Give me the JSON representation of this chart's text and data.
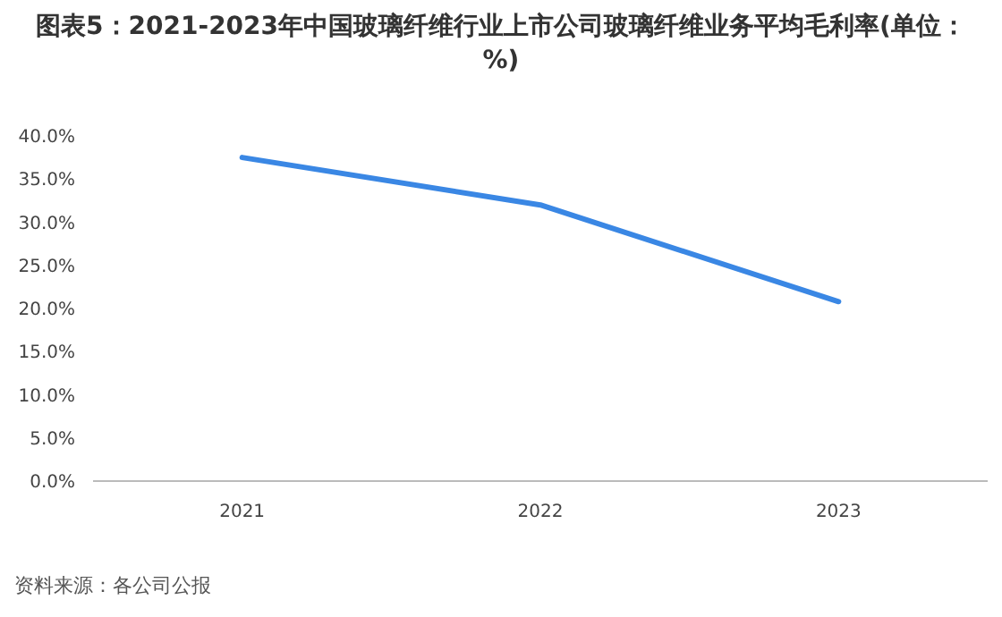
{
  "chart_data": {
    "type": "line",
    "title": "图表5：2021-2023年中国玻璃纤维行业上市公司玻璃纤维业务平均毛利率(单位：%)",
    "categories": [
      "2021",
      "2022",
      "2023"
    ],
    "series": [
      {
        "color": "#3a87e4",
        "values": [
          37.5,
          32.0,
          20.8
        ]
      }
    ],
    "ylim": [
      0,
      40
    ],
    "yticks": [
      {
        "value": 0,
        "label": "0.0%"
      },
      {
        "value": 5,
        "label": "5.0%"
      },
      {
        "value": 10,
        "label": "10.0%"
      },
      {
        "value": 15,
        "label": "15.0%"
      },
      {
        "value": 20,
        "label": "20.0%"
      },
      {
        "value": 25,
        "label": "25.0%"
      },
      {
        "value": 30,
        "label": "30.0%"
      },
      {
        "value": 35,
        "label": "35.0%"
      },
      {
        "value": 40,
        "label": "40.0%"
      }
    ],
    "grid": false,
    "marker": "none",
    "line_style": "solid",
    "annotations": [
      "资料来源：各公司公报"
    ]
  }
}
